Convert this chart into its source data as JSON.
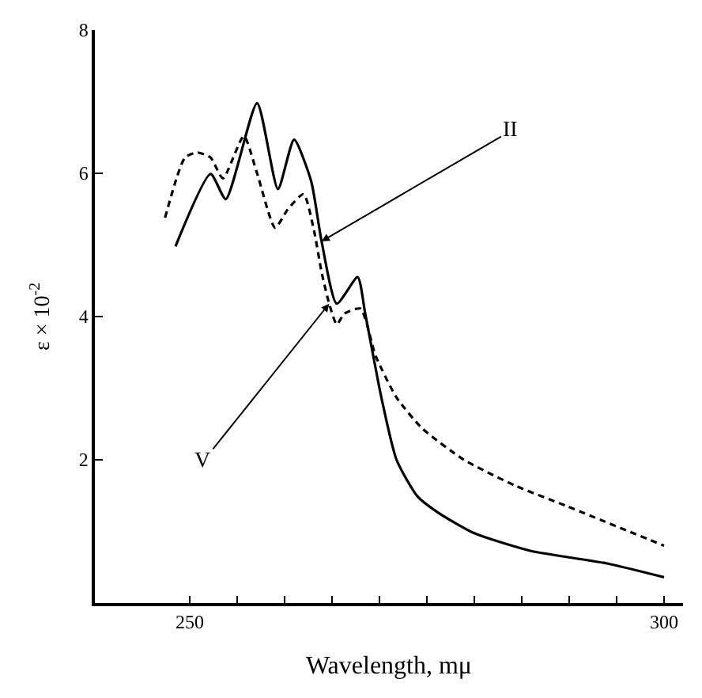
{
  "chart_data": {
    "type": "line",
    "xlabel": "Wavelength, mμ",
    "ylabel": "ε × 10$^{-2}$",
    "xlim": [
      240,
      302
    ],
    "ylim": [
      0,
      8
    ],
    "xticks": [
      250,
      {
        "value": 255,
        "label": null
      },
      {
        "value": 260,
        "label": null
      },
      {
        "value": 265,
        "label": null
      },
      {
        "value": 270,
        "label": null
      },
      {
        "value": 275,
        "label": null
      },
      {
        "value": 280,
        "label": null
      },
      {
        "value": 285,
        "label": null
      },
      {
        "value": 290,
        "label": null
      },
      {
        "value": 295,
        "label": null
      },
      300
    ],
    "yticks": [
      {
        "value": 0,
        "label": null
      },
      2,
      4,
      6,
      8
    ],
    "marker": "none",
    "series": [
      {
        "color": "#000000",
        "line_style": "solid",
        "x": [
          248.5,
          252.2,
          253.8,
          257.1,
          259.3,
          261.0,
          262.8,
          263.9,
          265.5,
          267.7,
          268.5,
          270.2,
          271.8,
          274.0,
          276.1,
          279.9,
          285.9,
          294.1,
          300
        ],
        "values": [
          4.98,
          5.99,
          5.64,
          6.98,
          5.78,
          6.47,
          5.89,
          5.05,
          4.18,
          4.55,
          4.04,
          2.87,
          2.0,
          1.49,
          1.27,
          0.98,
          0.73,
          0.55,
          0.36
        ]
      },
      {
        "color": "#000000",
        "line_style": "dashed",
        "x": [
          247.4,
          249.5,
          250.8,
          252.2,
          253.5,
          255.7,
          257.1,
          259.0,
          260.3,
          262.0,
          263.1,
          263.9,
          264.7,
          265.5,
          266.3,
          268.0,
          269.6,
          271.8,
          274.5,
          278.9,
          284.3,
          289.8,
          300
        ],
        "values": [
          5.38,
          6.22,
          6.29,
          6.22,
          5.93,
          6.52,
          6.0,
          5.24,
          5.49,
          5.71,
          5.2,
          4.62,
          4.18,
          3.89,
          4.04,
          4.11,
          3.45,
          2.87,
          2.44,
          2.0,
          1.64,
          1.35,
          0.8
        ]
      }
    ],
    "annotations": [
      {
        "text": "II",
        "x": 263.9,
        "y": 5.05
      },
      {
        "text": "V",
        "x": 264.7,
        "y": 4.18
      }
    ]
  }
}
